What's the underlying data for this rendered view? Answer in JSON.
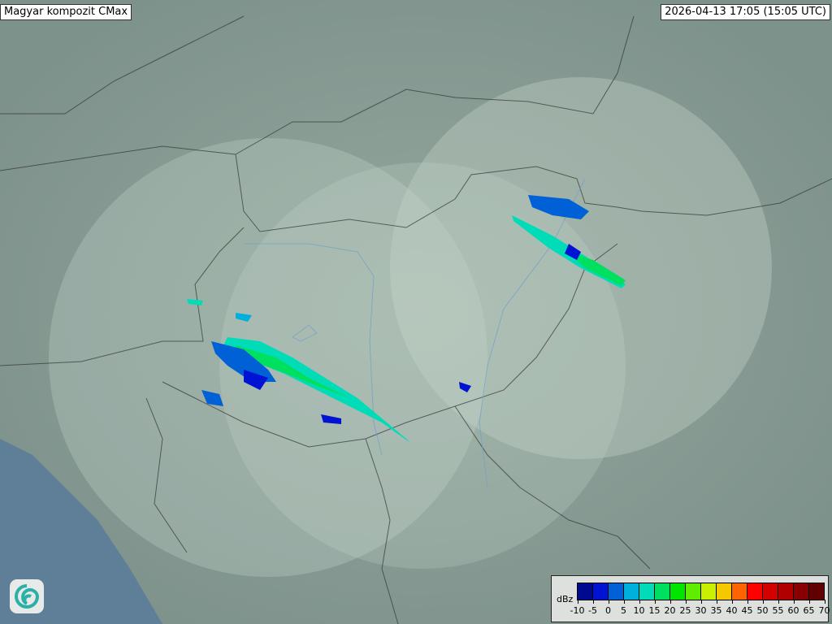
{
  "title": "Magyar kompozit  CMax",
  "timestamp": "2026-04-13 17:05 (15:05 UTC)",
  "legend": {
    "unit": "dBz",
    "ticks": [
      "-10",
      "-5",
      "0",
      "5",
      "10",
      "15",
      "20",
      "25",
      "30",
      "35",
      "40",
      "45",
      "50",
      "55",
      "60",
      "65",
      "70"
    ],
    "colors": [
      "#000a90",
      "#0012d2",
      "#0060d6",
      "#00b0dc",
      "#00dcb8",
      "#00e060",
      "#00e600",
      "#60ee00",
      "#c8f000",
      "#f6c800",
      "#ff6400",
      "#ff0000",
      "#d40000",
      "#b00000",
      "#880000",
      "#600000"
    ]
  },
  "logo": {
    "icon": "swirl-logo-icon"
  }
}
